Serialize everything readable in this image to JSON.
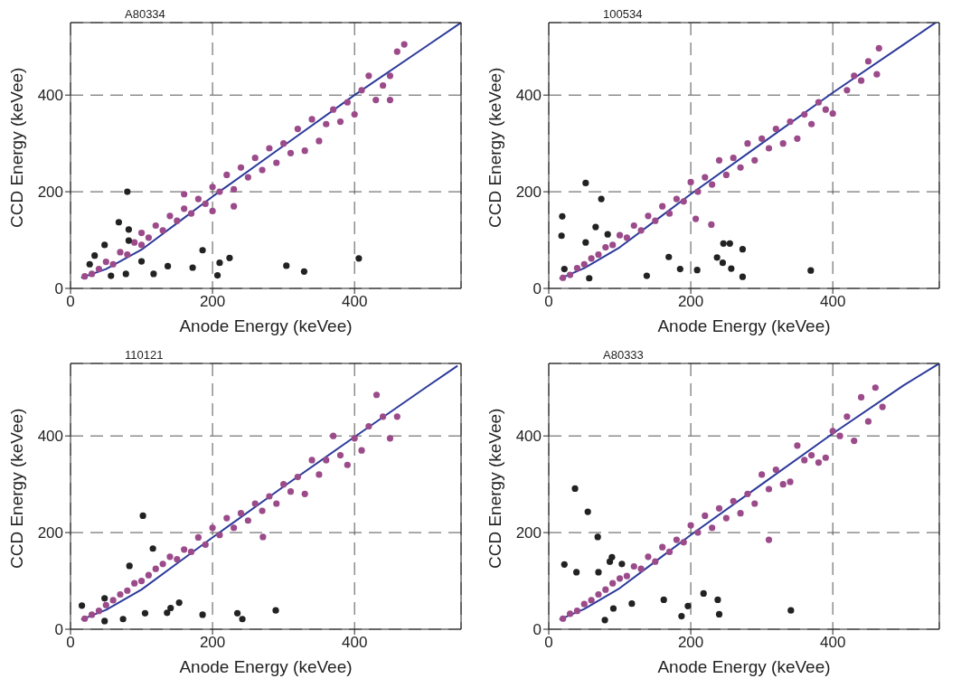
{
  "chart_data": [
    {
      "type": "scatter",
      "title": "A80334",
      "xlabel": "Anode Energy (keVee)",
      "ylabel": "CCD Energy (keVee)",
      "xlim": [
        0,
        550
      ],
      "ylim": [
        0,
        550
      ],
      "xticks": [
        0,
        200,
        400
      ],
      "yticks": [
        0,
        200,
        400
      ],
      "grid": true,
      "series": [
        {
          "marker": "circle",
          "color": "#9b4a8a",
          "x": [
            20,
            30,
            40,
            50,
            60,
            70,
            80,
            90,
            100,
            100,
            110,
            120,
            130,
            140,
            150,
            160,
            170,
            180,
            190,
            200,
            210,
            220,
            230,
            240,
            250,
            260,
            270,
            280,
            290,
            300,
            310,
            320,
            330,
            340,
            350,
            360,
            370,
            380,
            390,
            400,
            410,
            420,
            430,
            440,
            450,
            460,
            470,
            450,
            160,
            200,
            230
          ],
          "values": [
            25,
            30,
            40,
            55,
            50,
            75,
            70,
            95,
            90,
            115,
            105,
            130,
            120,
            150,
            140,
            165,
            155,
            185,
            175,
            210,
            200,
            235,
            205,
            250,
            230,
            270,
            245,
            290,
            260,
            300,
            280,
            330,
            285,
            350,
            305,
            340,
            370,
            345,
            385,
            360,
            410,
            440,
            390,
            420,
            440,
            490,
            505,
            390,
            195,
            160,
            170
          ]
        },
        {
          "marker": "circle",
          "color": "#222222",
          "x": [
            80,
            68,
            82,
            48,
            34,
            100,
            117,
            137,
            172,
            186,
            207,
            210,
            224,
            304,
            329,
            406,
            78,
            57,
            27,
            82
          ],
          "values": [
            200,
            137,
            122,
            90,
            68,
            56,
            30,
            46,
            43,
            79,
            27,
            53,
            63,
            47,
            35,
            62,
            30,
            26,
            50,
            99
          ]
        },
        {
          "type": "line",
          "marker": "none",
          "color": "#2b3a9a",
          "x": [
            15,
            50,
            100,
            150,
            200,
            300,
            400,
            500,
            550
          ],
          "values": [
            22,
            40,
            80,
            135,
            190,
            295,
            400,
            500,
            550
          ]
        }
      ]
    },
    {
      "type": "scatter",
      "title": "100534",
      "xlabel": "Anode Energy (keVee)",
      "ylabel": "CCD Energy (keVee)",
      "xlim": [
        0,
        550
      ],
      "ylim": [
        0,
        550
      ],
      "xticks": [
        0,
        200,
        400
      ],
      "yticks": [
        0,
        200,
        400
      ],
      "grid": true,
      "series": [
        {
          "marker": "circle",
          "color": "#9b4a8a",
          "x": [
            20,
            30,
            40,
            50,
            60,
            70,
            80,
            90,
            100,
            110,
            120,
            130,
            140,
            150,
            160,
            170,
            180,
            190,
            200,
            210,
            220,
            230,
            240,
            250,
            260,
            270,
            280,
            290,
            300,
            310,
            320,
            330,
            340,
            350,
            360,
            370,
            380,
            390,
            400,
            420,
            430,
            440,
            450,
            462,
            465,
            207,
            229
          ],
          "values": [
            22,
            28,
            42,
            50,
            62,
            70,
            85,
            90,
            110,
            105,
            130,
            120,
            150,
            140,
            170,
            155,
            185,
            180,
            220,
            200,
            230,
            215,
            265,
            235,
            270,
            250,
            300,
            265,
            310,
            290,
            330,
            300,
            345,
            310,
            360,
            340,
            385,
            370,
            362,
            410,
            440,
            430,
            470,
            443,
            497,
            144,
            132
          ]
        },
        {
          "marker": "circle",
          "color": "#222222",
          "x": [
            52,
            74,
            19,
            18,
            52,
            66,
            83,
            138,
            169,
            185,
            209,
            237,
            246,
            255,
            245,
            257,
            273,
            273,
            369,
            22,
            57
          ],
          "values": [
            218,
            185,
            149,
            109,
            95,
            127,
            112,
            26,
            65,
            40,
            38,
            64,
            93,
            93,
            53,
            41,
            81,
            24,
            37,
            40,
            21
          ]
        },
        {
          "type": "line",
          "marker": "none",
          "color": "#2b3a9a",
          "x": [
            15,
            50,
            100,
            150,
            200,
            300,
            400,
            500,
            545
          ],
          "values": [
            20,
            42,
            85,
            140,
            195,
            300,
            405,
            505,
            550
          ]
        }
      ]
    },
    {
      "type": "scatter",
      "title": "110121",
      "xlabel": "Anode Energy (keVee)",
      "ylabel": "CCD Energy (keVee)",
      "xlim": [
        0,
        550
      ],
      "ylim": [
        0,
        550
      ],
      "xticks": [
        0,
        200,
        400
      ],
      "yticks": [
        0,
        200,
        400
      ],
      "grid": true,
      "series": [
        {
          "marker": "circle",
          "color": "#9b4a8a",
          "x": [
            20,
            30,
            40,
            50,
            60,
            70,
            80,
            90,
            100,
            110,
            120,
            130,
            140,
            150,
            160,
            170,
            180,
            190,
            200,
            210,
            220,
            230,
            240,
            250,
            260,
            270,
            280,
            290,
            300,
            310,
            320,
            330,
            340,
            350,
            360,
            370,
            380,
            390,
            400,
            410,
            420,
            431,
            440,
            450,
            460,
            271
          ],
          "values": [
            22,
            30,
            38,
            50,
            60,
            72,
            80,
            95,
            100,
            112,
            125,
            135,
            150,
            145,
            165,
            160,
            190,
            175,
            210,
            195,
            230,
            210,
            240,
            225,
            260,
            245,
            275,
            260,
            300,
            285,
            315,
            280,
            350,
            320,
            350,
            400,
            360,
            340,
            395,
            370,
            420,
            485,
            440,
            395,
            440,
            191
          ]
        },
        {
          "marker": "circle",
          "color": "#222222",
          "x": [
            102,
            116,
            83,
            16,
            105,
            136,
            141,
            153,
            186,
            235,
            242,
            289,
            48,
            74,
            48
          ],
          "values": [
            235,
            167,
            131,
            49,
            33,
            34,
            44,
            55,
            30,
            33,
            21,
            39,
            17,
            21,
            64
          ]
        },
        {
          "type": "line",
          "marker": "none",
          "color": "#2b3a9a",
          "x": [
            15,
            50,
            100,
            150,
            200,
            300,
            400,
            500,
            545
          ],
          "values": [
            20,
            40,
            82,
            136,
            190,
            295,
            398,
            500,
            545
          ]
        }
      ]
    },
    {
      "type": "scatter",
      "title": "A80333",
      "xlabel": "Anode Energy (keVee)",
      "ylabel": "CCD Energy (keVee)",
      "xlim": [
        0,
        550
      ],
      "ylim": [
        0,
        550
      ],
      "xticks": [
        0,
        200,
        400
      ],
      "yticks": [
        0,
        200,
        400
      ],
      "grid": true,
      "series": [
        {
          "marker": "circle",
          "color": "#9b4a8a",
          "x": [
            20,
            30,
            40,
            50,
            60,
            70,
            80,
            90,
            100,
            110,
            120,
            130,
            140,
            150,
            160,
            170,
            180,
            190,
            200,
            210,
            220,
            230,
            240,
            250,
            260,
            270,
            280,
            290,
            300,
            310,
            320,
            330,
            340,
            350,
            360,
            370,
            380,
            390,
            400,
            410,
            420,
            430,
            440,
            450,
            460,
            470,
            310
          ],
          "values": [
            22,
            32,
            38,
            52,
            60,
            72,
            82,
            95,
            105,
            110,
            130,
            125,
            150,
            140,
            170,
            160,
            185,
            180,
            215,
            200,
            235,
            210,
            250,
            230,
            265,
            240,
            280,
            260,
            320,
            290,
            330,
            300,
            305,
            380,
            350,
            360,
            345,
            355,
            410,
            400,
            440,
            390,
            480,
            430,
            500,
            460,
            185
          ]
        },
        {
          "marker": "circle",
          "color": "#222222",
          "x": [
            37,
            55,
            69,
            22,
            39,
            70,
            89,
            86,
            103,
            162,
            187,
            196,
            218,
            238,
            240,
            341,
            117,
            79,
            91
          ],
          "values": [
            291,
            243,
            191,
            134,
            118,
            118,
            149,
            140,
            135,
            61,
            27,
            48,
            74,
            61,
            31,
            39,
            53,
            19,
            43
          ]
        },
        {
          "type": "line",
          "marker": "none",
          "color": "#2b3a9a",
          "x": [
            15,
            50,
            100,
            150,
            200,
            300,
            400,
            500,
            550
          ],
          "values": [
            20,
            42,
            85,
            140,
            195,
            300,
            405,
            505,
            550
          ]
        }
      ]
    }
  ]
}
